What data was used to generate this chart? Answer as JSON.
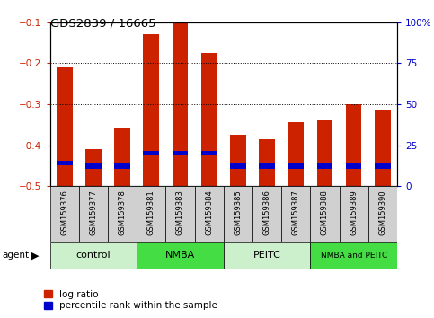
{
  "title": "GDS2839 / 16665",
  "categories": [
    "GSM159376",
    "GSM159377",
    "GSM159378",
    "GSM159381",
    "GSM159383",
    "GSM159384",
    "GSM159385",
    "GSM159386",
    "GSM159387",
    "GSM159388",
    "GSM159389",
    "GSM159390"
  ],
  "log_ratio": [
    -0.21,
    -0.41,
    -0.36,
    -0.13,
    -0.1,
    -0.175,
    -0.375,
    -0.385,
    -0.345,
    -0.34,
    -0.3,
    -0.315
  ],
  "percentile_pct": [
    14,
    12,
    12,
    20,
    20,
    20,
    12,
    12,
    12,
    12,
    12,
    12
  ],
  "bar_color_red": "#cc2200",
  "bar_color_blue": "#0000cc",
  "ylim_left": [
    -0.5,
    -0.1
  ],
  "ylim_right": [
    0,
    100
  ],
  "yticks_left": [
    -0.5,
    -0.4,
    -0.3,
    -0.2,
    -0.1
  ],
  "yticks_right": [
    0,
    25,
    50,
    75,
    100
  ],
  "groups": [
    {
      "label": "control",
      "start": 0,
      "end": 3,
      "color": "#ccf0cc"
    },
    {
      "label": "NMBA",
      "start": 3,
      "end": 6,
      "color": "#44dd44"
    },
    {
      "label": "PEITC",
      "start": 6,
      "end": 9,
      "color": "#ccf0cc"
    },
    {
      "label": "NMBA and PEITC",
      "start": 9,
      "end": 12,
      "color": "#44dd44"
    }
  ],
  "agent_label": "agent",
  "legend_red": "log ratio",
  "legend_blue": "percentile rank within the sample",
  "tick_label_color_left": "#cc2200",
  "tick_label_color_right": "#0000cc",
  "bar_width": 0.55
}
